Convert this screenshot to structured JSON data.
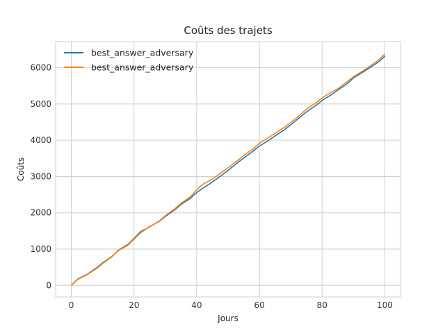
{
  "chart_data": {
    "type": "line",
    "title": "Coûts des trajets",
    "xlabel": "Jours",
    "ylabel": "Coûts",
    "xlim": [
      -5,
      105
    ],
    "ylim": [
      -320,
      6720
    ],
    "xticks": [
      0,
      20,
      40,
      60,
      80,
      100
    ],
    "yticks": [
      0,
      1000,
      2000,
      3000,
      4000,
      5000,
      6000
    ],
    "grid": true,
    "legend_position": "top-left",
    "series": [
      {
        "name": "best_answer_adversary",
        "color": "#1f77b4",
        "x": [
          0,
          2,
          5,
          8,
          10,
          13,
          15,
          18,
          20,
          22,
          25,
          28,
          30,
          33,
          35,
          38,
          40,
          42,
          45,
          48,
          50,
          53,
          55,
          58,
          60,
          63,
          65,
          68,
          70,
          73,
          75,
          78,
          80,
          83,
          85,
          88,
          90,
          93,
          95,
          98,
          100
        ],
        "y": [
          0,
          170,
          300,
          480,
          620,
          800,
          960,
          1110,
          1280,
          1450,
          1620,
          1760,
          1900,
          2080,
          2230,
          2400,
          2560,
          2680,
          2850,
          3040,
          3170,
          3380,
          3510,
          3700,
          3840,
          4000,
          4120,
          4290,
          4430,
          4640,
          4780,
          4960,
          5100,
          5260,
          5380,
          5560,
          5720,
          5880,
          5990,
          6160,
          6320
        ]
      },
      {
        "name": "best_answer_adversary",
        "color": "#ff7f0e",
        "x": [
          0,
          2,
          5,
          8,
          10,
          13,
          15,
          18,
          20,
          22,
          25,
          28,
          30,
          33,
          35,
          38,
          40,
          42,
          45,
          48,
          50,
          53,
          55,
          58,
          60,
          63,
          65,
          68,
          70,
          73,
          75,
          78,
          80,
          83,
          85,
          88,
          90,
          93,
          95,
          98,
          100
        ],
        "y": [
          0,
          160,
          290,
          460,
          600,
          790,
          970,
          1130,
          1300,
          1480,
          1610,
          1770,
          1920,
          2110,
          2260,
          2440,
          2640,
          2790,
          2930,
          3120,
          3240,
          3440,
          3580,
          3760,
          3920,
          4080,
          4190,
          4360,
          4490,
          4700,
          4860,
          5030,
          5170,
          5330,
          5420,
          5620,
          5750,
          5910,
          6030,
          6210,
          6380
        ]
      }
    ]
  }
}
